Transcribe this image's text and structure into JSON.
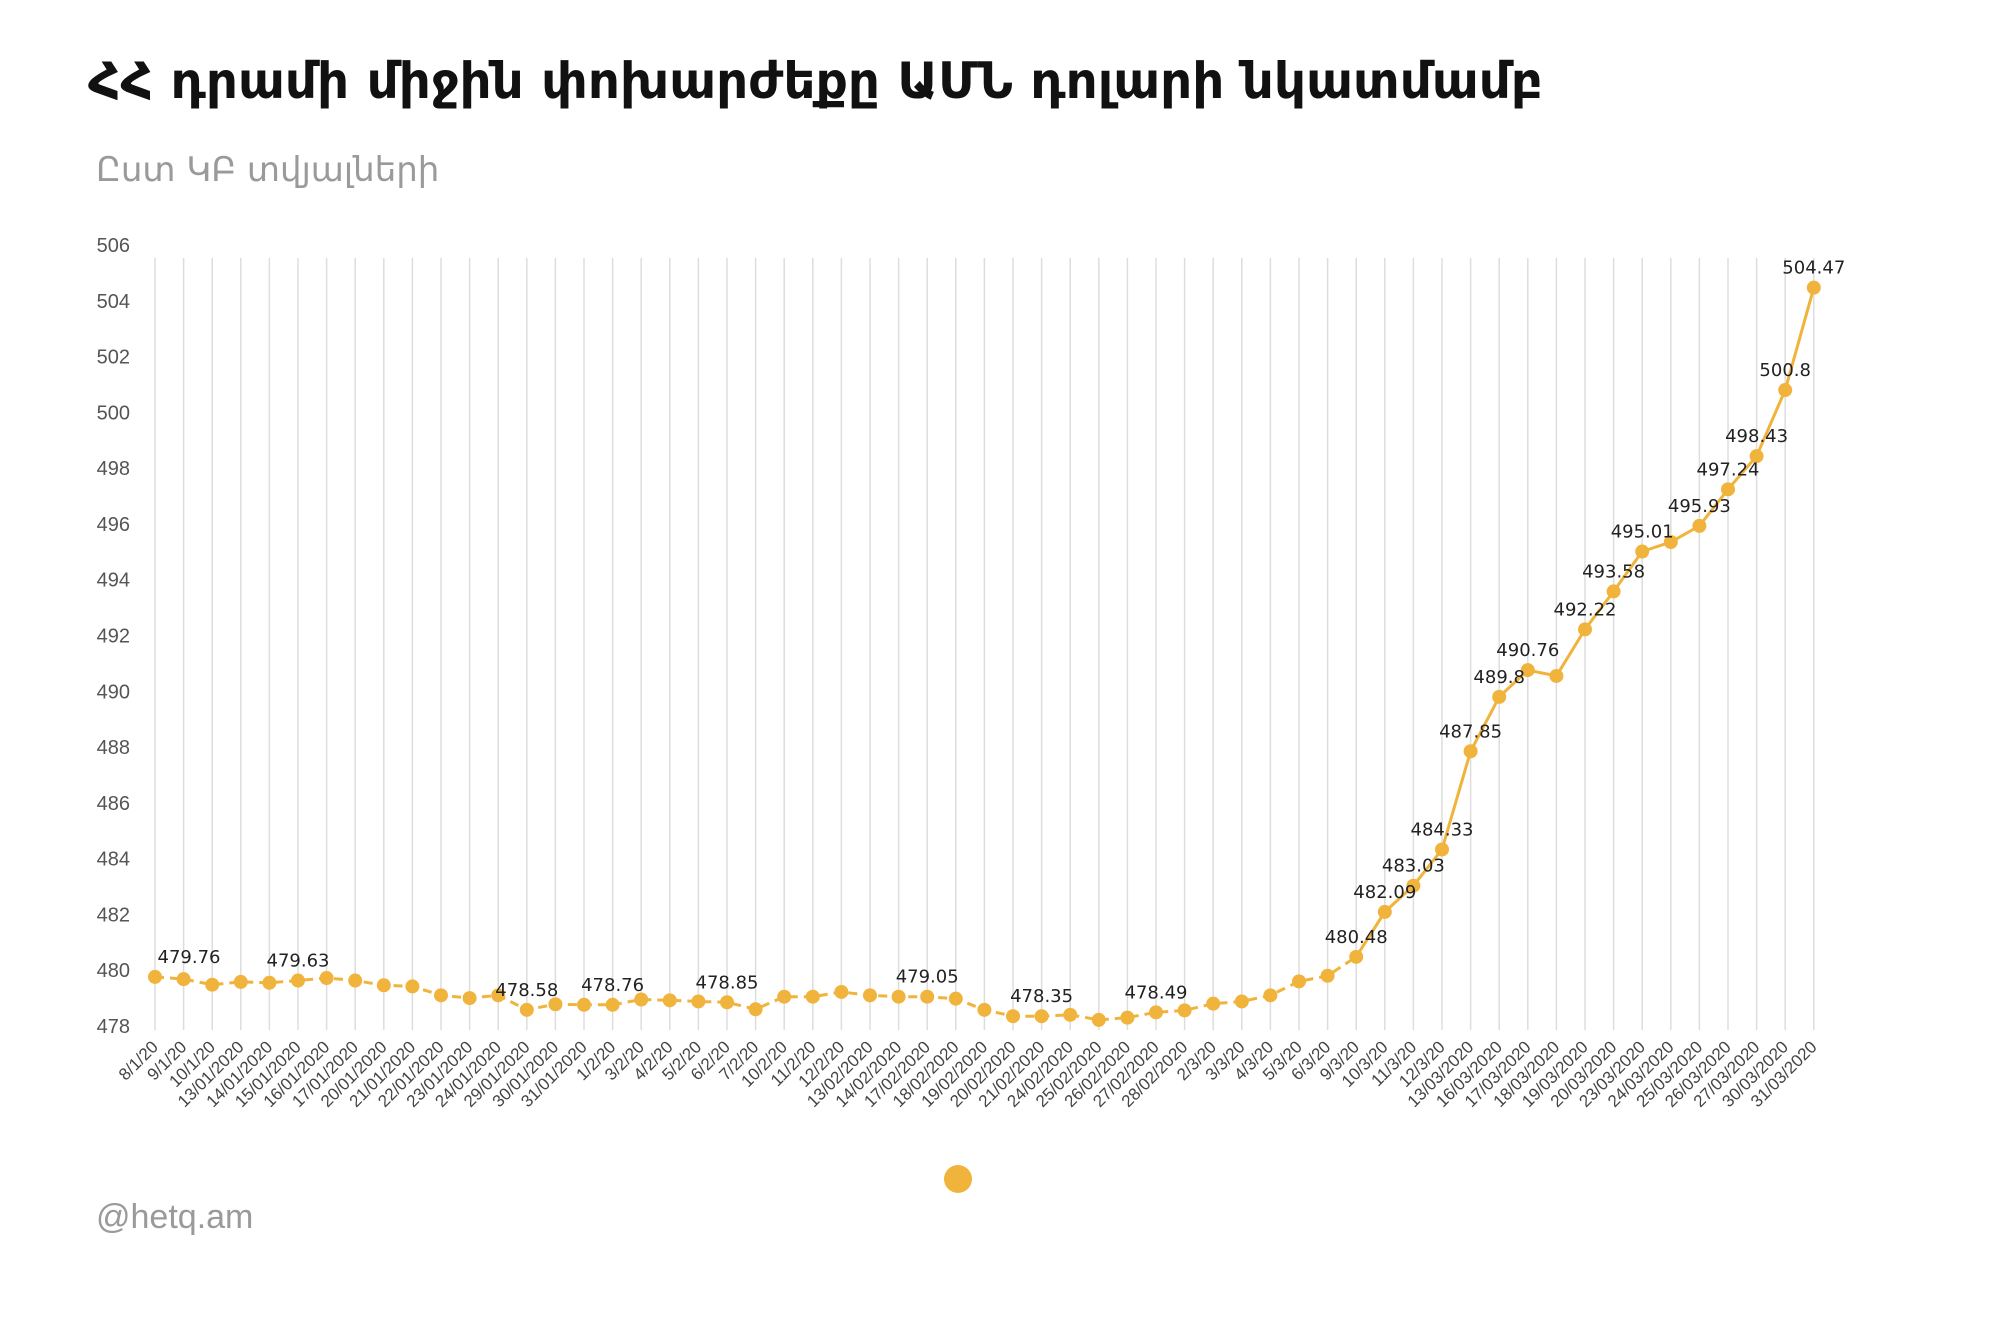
{
  "header": {
    "title": "ՀՀ դրամի միջին փոխարժեքը ԱՄՆ դոլարի նկատմամբ",
    "subtitle": "Ըստ ԿԲ տվյալների"
  },
  "footer": {
    "source": "@hetq.am"
  },
  "colors": {
    "series": "#f0b43c",
    "grid": "#dddddd"
  },
  "chart_data": {
    "type": "line",
    "title": "ՀՀ դրամի միջին փոխարժեքը ԱՄՆ դոլարի նկատմամբ",
    "subtitle": "Ըստ ԿԲ տվյալների",
    "ylim": [
      478,
      506
    ],
    "yticks": [
      478,
      480,
      482,
      484,
      486,
      488,
      490,
      492,
      494,
      496,
      498,
      500,
      502,
      504,
      506
    ],
    "grid": "vertical",
    "legend": "bottom-center",
    "categories": [
      "8/1/20",
      "9/1/20",
      "10/1/20",
      "13/01/2020",
      "14/01/2020",
      "15/01/2020",
      "16/01/2020",
      "17/01/2020",
      "20/01/2020",
      "21/01/2020",
      "22/01/2020",
      "23/01/2020",
      "24/01/2020",
      "29/01/2020",
      "30/01/2020",
      "31/01/2020",
      "1/2/20",
      "3/2/20",
      "4/2/20",
      "5/2/20",
      "6/2/20",
      "7/2/20",
      "10/2/20",
      "11/2/20",
      "12/2/20",
      "13/02/2020",
      "14/02/2020",
      "17/02/2020",
      "18/02/2020",
      "19/02/2020",
      "20/02/2020",
      "21/02/2020",
      "24/02/2020",
      "25/02/2020",
      "26/02/2020",
      "27/02/2020",
      "28/02/2020",
      "2/3/20",
      "3/3/20",
      "4/3/20",
      "5/3/20",
      "6/3/20",
      "9/3/20",
      "10/3/20",
      "11/3/20",
      "12/3/20",
      "13/03/2020",
      "16/03/2020",
      "17/03/2020",
      "18/03/2020",
      "19/03/2020",
      "20/03/2020",
      "23/03/2020",
      "24/03/2020",
      "25/03/2020",
      "26/03/2020",
      "27/03/2020",
      "30/03/2020",
      "31/03/2020"
    ],
    "values": [
      479.76,
      479.68,
      479.48,
      479.58,
      479.55,
      479.63,
      479.72,
      479.63,
      479.46,
      479.42,
      479.1,
      479.0,
      479.1,
      478.58,
      478.78,
      478.76,
      478.76,
      478.95,
      478.92,
      478.88,
      478.85,
      478.6,
      479.05,
      479.05,
      479.22,
      479.1,
      479.05,
      479.05,
      478.98,
      478.58,
      478.35,
      478.35,
      478.4,
      478.22,
      478.3,
      478.49,
      478.56,
      478.8,
      478.88,
      479.1,
      479.6,
      479.8,
      480.48,
      482.09,
      483.03,
      484.33,
      487.85,
      489.8,
      490.76,
      490.55,
      492.22,
      493.58,
      495.01,
      495.35,
      495.93,
      497.24,
      498.43,
      500.8,
      504.47
    ],
    "data_labels": [
      {
        "index": 0,
        "text": "479.76"
      },
      {
        "index": 5,
        "text": "479.63"
      },
      {
        "index": 13,
        "text": "478.58"
      },
      {
        "index": 16,
        "text": "478.76"
      },
      {
        "index": 20,
        "text": "478.85"
      },
      {
        "index": 27,
        "text": "479.05"
      },
      {
        "index": 31,
        "text": "478.35"
      },
      {
        "index": 35,
        "text": "478.49"
      },
      {
        "index": 42,
        "text": "480.48"
      },
      {
        "index": 43,
        "text": "482.09"
      },
      {
        "index": 44,
        "text": "483.03"
      },
      {
        "index": 45,
        "text": "484.33"
      },
      {
        "index": 46,
        "text": "487.85"
      },
      {
        "index": 47,
        "text": "489.8"
      },
      {
        "index": 48,
        "text": "490.76"
      },
      {
        "index": 50,
        "text": "492.22"
      },
      {
        "index": 51,
        "text": "493.58"
      },
      {
        "index": 52,
        "text": "495.01"
      },
      {
        "index": 54,
        "text": "495.93"
      },
      {
        "index": 55,
        "text": "497.24"
      },
      {
        "index": 56,
        "text": "498.43"
      },
      {
        "index": 57,
        "text": "500.8"
      },
      {
        "index": 58,
        "text": "504.47"
      }
    ]
  }
}
